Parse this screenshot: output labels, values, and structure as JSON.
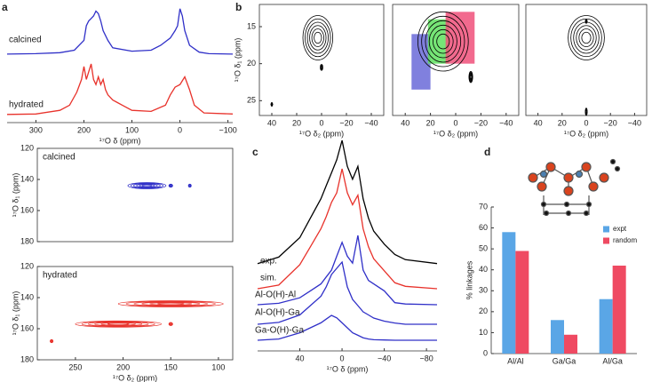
{
  "panels": [
    "a",
    "b",
    "c",
    "d"
  ],
  "chart_data": [
    {
      "type": "line",
      "xlabel": "¹⁷O δ (ppm)",
      "xlim": [
        360,
        -110
      ],
      "xticks": [
        300,
        200,
        100,
        0,
        {
          "value": -100,
          "label": "−100"
        }
      ],
      "ylim": [
        0,
        1
      ],
      "series": [
        {
          "name": "calcined",
          "color": "#3030c8",
          "x": [
            360,
            300,
            250,
            220,
            200,
            195,
            190,
            185,
            180,
            175,
            170,
            165,
            160,
            150,
            140,
            100,
            60,
            40,
            20,
            10,
            5,
            0,
            -5,
            -10,
            -20,
            -40,
            -60,
            -110
          ],
          "values": [
            0.02,
            0.03,
            0.05,
            0.1,
            0.3,
            0.6,
            0.7,
            0.75,
            0.8,
            0.9,
            0.85,
            0.7,
            0.5,
            0.3,
            0.15,
            0.08,
            0.1,
            0.2,
            0.35,
            0.5,
            0.6,
            0.95,
            0.8,
            0.5,
            0.2,
            0.06,
            0.03,
            0.02
          ]
        },
        {
          "name": "hydrated",
          "color": "#e8322b",
          "x": [
            360,
            300,
            250,
            230,
            215,
            205,
            200,
            195,
            190,
            185,
            180,
            175,
            170,
            165,
            160,
            155,
            150,
            140,
            130,
            120,
            100,
            60,
            30,
            20,
            10,
            0,
            -10,
            -20,
            -30,
            -50,
            -110
          ],
          "values": [
            0.02,
            0.03,
            0.1,
            0.2,
            0.45,
            0.7,
            0.95,
            0.7,
            0.85,
            1.0,
            0.7,
            0.6,
            0.75,
            0.6,
            0.7,
            0.5,
            0.4,
            0.3,
            0.25,
            0.2,
            0.1,
            0.08,
            0.2,
            0.4,
            0.55,
            0.6,
            0.75,
            0.5,
            0.2,
            0.05,
            0.03
          ]
        }
      ]
    },
    {
      "type": "contour",
      "label": "calcined",
      "color": "#3030c8",
      "frame": true,
      "y_inverted": true,
      "ylabel": "¹⁷O δ₁ (ppm)",
      "xlim": [
        290,
        85
      ],
      "ylim": [
        120,
        180
      ],
      "yticks": [
        120,
        140,
        160,
        180
      ],
      "peaks": [
        {
          "x": 175,
          "y": 144,
          "w": 40,
          "h": 4
        },
        {
          "x": 150,
          "y": 144,
          "w": 4,
          "h": 2
        },
        {
          "x": 130,
          "y": 144,
          "w": 3,
          "h": 2
        }
      ]
    },
    {
      "type": "contour",
      "label": "hydrated",
      "color": "#e8322b",
      "frame": true,
      "y_inverted": true,
      "xlabel": "¹⁷O δ₂ (ppm)",
      "ylabel": "¹⁷O δ₁ (ppm)",
      "xlim": [
        290,
        85
      ],
      "ylim": [
        120,
        180
      ],
      "xticks": [
        250,
        200,
        150,
        100
      ],
      "yticks": [
        120,
        140,
        160,
        180
      ],
      "peaks": [
        {
          "x": 150,
          "y": 144,
          "w": 110,
          "h": 4
        },
        {
          "x": 205,
          "y": 157,
          "w": 90,
          "h": 4
        },
        {
          "x": 150,
          "y": 157,
          "w": 4,
          "h": 2
        },
        {
          "x": 275,
          "y": 168,
          "w": 3,
          "h": 2
        }
      ]
    },
    {
      "type": "contour",
      "color": "#000000",
      "frame": true,
      "y_inverted": true,
      "xlabel": "¹⁷O δ₂ (ppm)",
      "ylabel": "¹⁷O δ₁ (ppm)",
      "xlim": [
        50,
        -50
      ],
      "ylim": [
        12,
        27
      ],
      "xticks": [
        40,
        20,
        0,
        {
          "value": -20,
          "label": "−20"
        },
        {
          "value": -40,
          "label": "−40"
        }
      ],
      "yticks": [
        15,
        20,
        25
      ],
      "peaks": [
        {
          "x": 3,
          "y": 16.5,
          "w": 24,
          "h": 6
        },
        {
          "x": 0,
          "y": 20.5,
          "w": 2,
          "h": 0.8
        },
        {
          "x": 40,
          "y": 25.5,
          "w": 1,
          "h": 0.5
        }
      ]
    },
    {
      "type": "contour",
      "color": "#000000",
      "frame": true,
      "y_inverted": true,
      "xlabel": "¹⁷O δ₂ (ppm)",
      "xlim": [
        50,
        -50
      ],
      "ylim": [
        12,
        27
      ],
      "xticks": [
        40,
        20,
        0,
        {
          "value": -20,
          "label": "−20"
        },
        {
          "value": -40,
          "label": "−40"
        }
      ],
      "regions": [
        {
          "x": [
            35,
            20
          ],
          "y": [
            16,
            23.5
          ],
          "color": "#6a6ad8"
        },
        {
          "x": [
            22,
            5
          ],
          "y": [
            14,
            20
          ],
          "color": "#5ee05e"
        },
        {
          "x": [
            8,
            -15
          ],
          "y": [
            13,
            20
          ],
          "color": "#f0507a"
        }
      ],
      "peaks": [
        {
          "x": 10,
          "y": 17,
          "w": 40,
          "h": 8
        },
        {
          "x": -12,
          "y": 21.8,
          "w": 3,
          "h": 1.5
        }
      ]
    },
    {
      "type": "contour",
      "color": "#000000",
      "frame": true,
      "y_inverted": true,
      "xlabel": "¹⁷O δ₂ (ppm)",
      "xlim": [
        50,
        -50
      ],
      "ylim": [
        12,
        27
      ],
      "xticks": [
        40,
        20,
        0,
        {
          "value": -20,
          "label": "−20"
        },
        {
          "value": -40,
          "label": "−40"
        }
      ],
      "peaks": [
        {
          "x": 0,
          "y": 16.5,
          "w": 30,
          "h": 6
        },
        {
          "x": 0,
          "y": 14.3,
          "w": 1.5,
          "h": 0.5
        },
        {
          "x": 0,
          "y": 26.5,
          "w": 1.5,
          "h": 1
        }
      ]
    },
    {
      "type": "line",
      "xlabel": "¹⁷O δ (ppm)",
      "xlim": [
        80,
        -90
      ],
      "ylim": [
        0,
        1
      ],
      "xticks": [
        40,
        0,
        {
          "value": -40,
          "label": "−40"
        },
        {
          "value": -80,
          "label": "−80"
        }
      ],
      "x": [
        80,
        60,
        40,
        30,
        20,
        15,
        10,
        5,
        0,
        -5,
        -10,
        -15,
        -20,
        -25,
        -30,
        -40,
        -50,
        -60,
        -90
      ],
      "series": [
        {
          "name": "exp.",
          "color": "#000000",
          "values": [
            0.05,
            0.1,
            0.25,
            0.4,
            0.55,
            0.65,
            0.75,
            0.85,
            1.0,
            0.8,
            0.7,
            0.8,
            0.55,
            0.4,
            0.3,
            0.2,
            0.12,
            0.08,
            0.05
          ]
        },
        {
          "name": "sim.",
          "color": "#e8322b",
          "values": [
            0.0,
            0.03,
            0.2,
            0.35,
            0.5,
            0.6,
            0.72,
            0.8,
            1.0,
            0.8,
            0.7,
            0.78,
            0.5,
            0.35,
            0.25,
            0.15,
            0.05,
            0.02,
            0.0
          ]
        },
        {
          "name": "Al-O(H)-Al",
          "color": "#3030c8",
          "values": [
            0,
            0.02,
            0.1,
            0.2,
            0.3,
            0.4,
            0.5,
            0.7,
            0.9,
            0.7,
            0.6,
            1.0,
            0.5,
            0.35,
            0.3,
            0.2,
            0.03,
            0.01,
            0
          ]
        },
        {
          "name": "Al-O(H)-Ga",
          "color": "#3030c8",
          "values": [
            0,
            0.03,
            0.15,
            0.3,
            0.45,
            0.6,
            0.8,
            0.9,
            1.0,
            0.6,
            0.4,
            0.3,
            0.2,
            0.15,
            0.1,
            0.05,
            0.02,
            0,
            0
          ]
        },
        {
          "name": "Ga-O(H)-Ga",
          "color": "#3030c8",
          "values": [
            0,
            0.05,
            0.3,
            0.5,
            0.7,
            0.85,
            1.0,
            0.9,
            0.7,
            0.5,
            0.3,
            0.2,
            0.1,
            0.05,
            0.02,
            0.01,
            0,
            0,
            0
          ]
        }
      ]
    },
    {
      "type": "bar",
      "ylabel": "% linkages",
      "categories": [
        "Al/Al",
        "Ga/Ga",
        "Al/Ga"
      ],
      "legend": "upper right",
      "ylim": [
        0,
        70
      ],
      "yticks": [
        0,
        10,
        20,
        30,
        40,
        50,
        60,
        70
      ],
      "series": [
        {
          "name": "expt",
          "color": "#5aa6e6",
          "values": [
            58,
            16,
            26
          ]
        },
        {
          "name": "random",
          "color": "#ef4a62",
          "values": [
            49,
            9,
            42
          ]
        }
      ]
    }
  ]
}
